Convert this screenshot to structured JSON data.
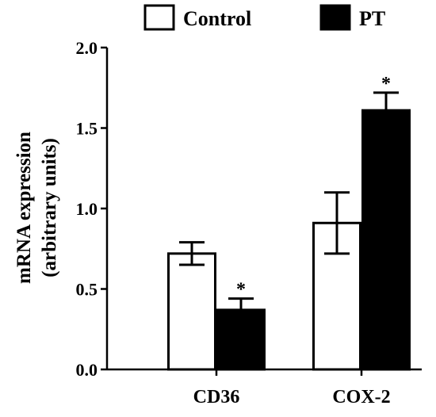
{
  "chart_data": {
    "type": "bar",
    "categories": [
      "CD36",
      "COX-2"
    ],
    "series": [
      {
        "name": "Control",
        "values": [
          0.72,
          0.91
        ],
        "errors": [
          0.07,
          0.19
        ],
        "significance": [
          "",
          ""
        ],
        "fill": "#ffffff"
      },
      {
        "name": "PT",
        "values": [
          0.37,
          1.61
        ],
        "errors": [
          0.07,
          0.11
        ],
        "significance": [
          "*",
          "*"
        ],
        "fill": "#000000"
      }
    ],
    "ylabel_line1": "mRNA expression",
    "ylabel_line2": "(arbitrary units)",
    "ylim": [
      0,
      2.0
    ],
    "yticks": [
      "0.0",
      "0.5",
      "1.0",
      "1.5",
      "2.0"
    ],
    "legend_position": "top",
    "grid": false
  }
}
